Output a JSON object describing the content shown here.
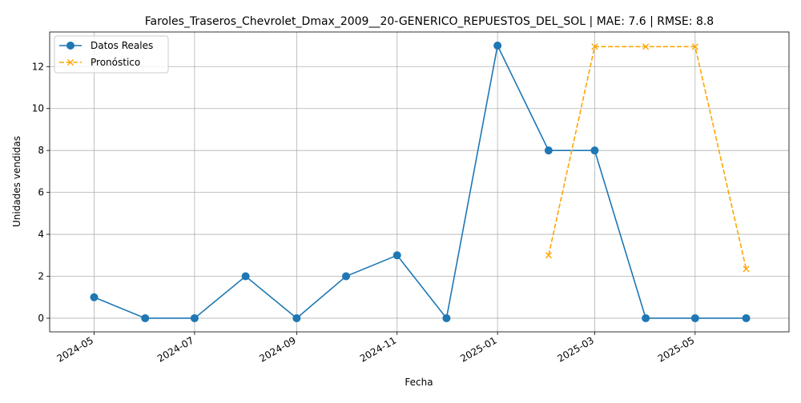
{
  "chart_data": {
    "type": "line",
    "title": "Faroles_Traseros_Chevrolet_Dmax_2009__20-GENERICO_REPUESTOS_DEL_SOL | MAE: 7.6 | RMSE: 8.8",
    "xlabel": "Fecha",
    "ylabel": "Unidades vendidas",
    "x_range": [
      "2024-04-04",
      "2025-06-27"
    ],
    "ylim": [
      -0.65,
      13.65
    ],
    "grid": true,
    "legend_position": "top-left",
    "x_ticks": [
      {
        "date": "2024-05-01",
        "label": "2024-05"
      },
      {
        "date": "2024-07-01",
        "label": "2024-07"
      },
      {
        "date": "2024-09-01",
        "label": "2024-09"
      },
      {
        "date": "2024-11-01",
        "label": "2024-11"
      },
      {
        "date": "2025-01-01",
        "label": "2025-01"
      },
      {
        "date": "2025-03-01",
        "label": "2025-03"
      },
      {
        "date": "2025-05-01",
        "label": "2025-05"
      }
    ],
    "y_ticks": [
      0,
      2,
      4,
      6,
      8,
      10,
      12
    ],
    "series": [
      {
        "name": "Datos Reales",
        "color": "#1f77b4",
        "marker": "circle",
        "linestyle": "solid",
        "points": [
          {
            "x": "2024-05-01",
            "y": 1
          },
          {
            "x": "2024-06-01",
            "y": 0
          },
          {
            "x": "2024-07-01",
            "y": 0
          },
          {
            "x": "2024-08-01",
            "y": 2
          },
          {
            "x": "2024-09-01",
            "y": 0
          },
          {
            "x": "2024-10-01",
            "y": 2
          },
          {
            "x": "2024-11-01",
            "y": 3
          },
          {
            "x": "2024-12-01",
            "y": 0
          },
          {
            "x": "2025-01-01",
            "y": 13
          },
          {
            "x": "2025-02-01",
            "y": 8
          },
          {
            "x": "2025-03-01",
            "y": 8
          },
          {
            "x": "2025-04-01",
            "y": 0
          },
          {
            "x": "2025-05-01",
            "y": 0
          },
          {
            "x": "2025-06-01",
            "y": 0
          }
        ]
      },
      {
        "name": "Pronóstico",
        "color": "#ffa500",
        "marker": "x",
        "linestyle": "dashed",
        "points": [
          {
            "x": "2025-02-01",
            "y": 3.0
          },
          {
            "x": "2025-03-01",
            "y": 12.95
          },
          {
            "x": "2025-04-01",
            "y": 12.95
          },
          {
            "x": "2025-05-01",
            "y": 12.95
          },
          {
            "x": "2025-06-01",
            "y": 2.35
          }
        ]
      }
    ]
  }
}
